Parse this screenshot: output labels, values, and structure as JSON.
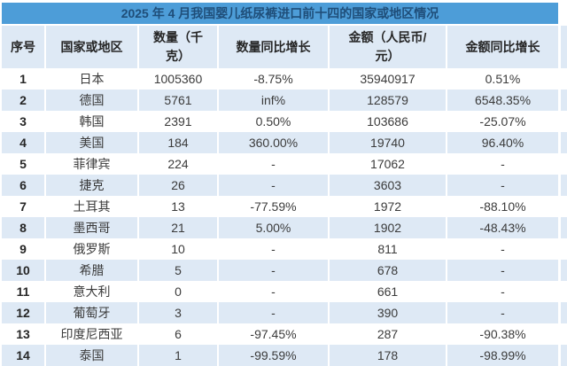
{
  "title": "2025 年 4 月我国婴儿纸尿裤进口前十四的国家或地区情况",
  "chart_data": {
    "type": "table",
    "title": "2025 年 4 月我国婴儿纸尿裤进口前十四的国家或地区情况",
    "columns": [
      "序号",
      "国家或地区",
      "数量（千克）",
      "数量同比增长",
      "金额（人民币/元）",
      "金额同比增长"
    ],
    "rows": [
      [
        "1",
        "日本",
        "1005360",
        "-8.75%",
        "35940917",
        "0.51%"
      ],
      [
        "2",
        "德国",
        "5761",
        "inf%",
        "128579",
        "6548.35%"
      ],
      [
        "3",
        "韩国",
        "2391",
        "0.50%",
        "103686",
        "-25.07%"
      ],
      [
        "4",
        "美国",
        "184",
        "360.00%",
        "19740",
        "96.40%"
      ],
      [
        "5",
        "菲律宾",
        "224",
        "-",
        "17062",
        "-"
      ],
      [
        "6",
        "捷克",
        "26",
        "-",
        "3603",
        "-"
      ],
      [
        "7",
        "土耳其",
        "13",
        "-77.59%",
        "1972",
        "-88.10%"
      ],
      [
        "8",
        "墨西哥",
        "21",
        "5.00%",
        "1902",
        "-48.43%"
      ],
      [
        "9",
        "俄罗斯",
        "10",
        "-",
        "811",
        "-"
      ],
      [
        "10",
        "希腊",
        "5",
        "-",
        "678",
        "-"
      ],
      [
        "11",
        "意大利",
        "0",
        "-",
        "661",
        "-"
      ],
      [
        "12",
        "葡萄牙",
        "3",
        "-",
        "390",
        "-"
      ],
      [
        "13",
        "印度尼西亚",
        "6",
        "-97.45%",
        "287",
        "-90.38%"
      ],
      [
        "14",
        "泰国",
        "1",
        "-99.59%",
        "178",
        "-98.99%"
      ]
    ]
  },
  "colors": {
    "title_bar": "#4d9dd8",
    "band_fill": "#dee9f5",
    "title_text": "#1f4e79",
    "body_text": "#3b3b3b"
  }
}
